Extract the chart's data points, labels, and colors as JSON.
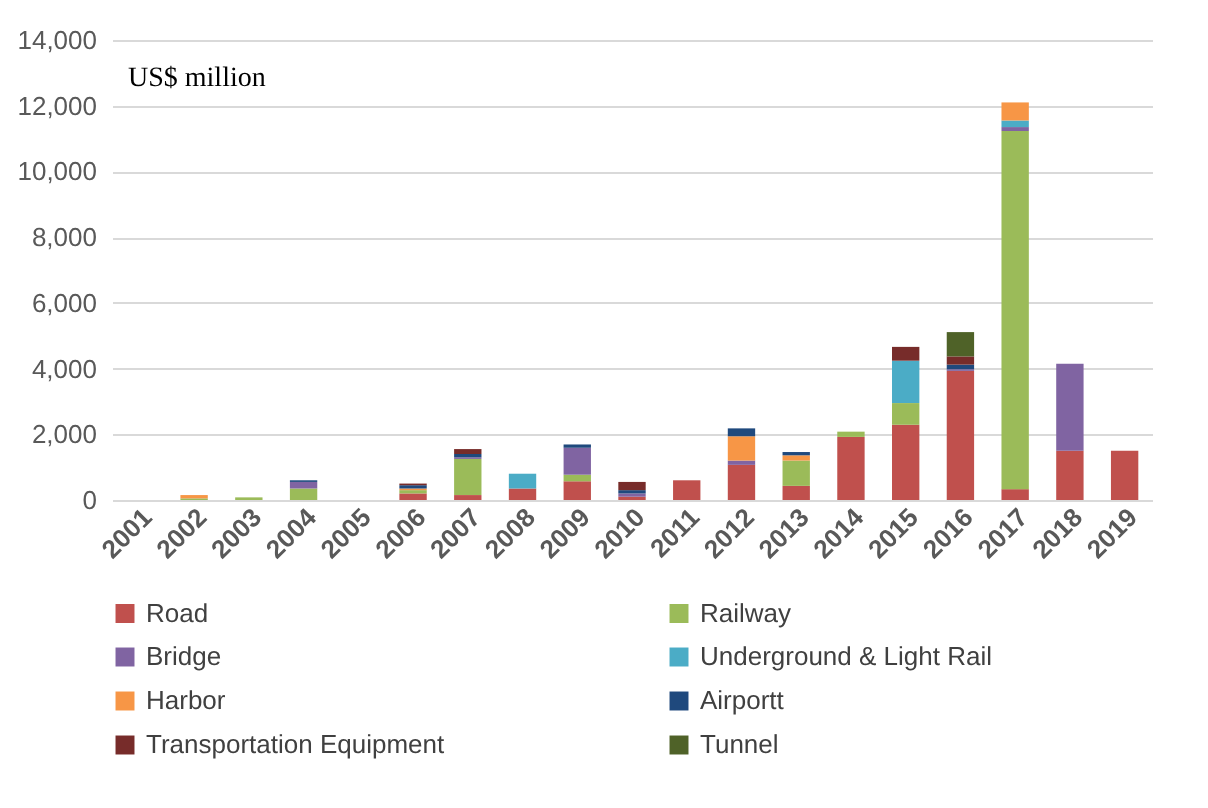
{
  "chart_data": {
    "type": "bar",
    "stacked": true,
    "categories": [
      "2001",
      "2002",
      "2003",
      "2004",
      "2005",
      "2006",
      "2007",
      "2008",
      "2009",
      "2010",
      "2011",
      "2012",
      "2013",
      "2014",
      "2015",
      "2016",
      "2017",
      "2018",
      "2019"
    ],
    "series": [
      {
        "name": "Road",
        "color": "#c0504d",
        "values": [
          null,
          null,
          null,
          null,
          null,
          200,
          150,
          350,
          570,
          100,
          600,
          1070,
          430,
          1920,
          2290,
          3930,
          330,
          1500,
          1500
        ]
      },
      {
        "name": "Railway",
        "color": "#9bbb59",
        "values": [
          null,
          50,
          80,
          350,
          null,
          100,
          1100,
          null,
          200,
          null,
          null,
          null,
          770,
          160,
          660,
          null,
          10900,
          null,
          null
        ]
      },
      {
        "name": "Bridge",
        "color": "#8064a2",
        "values": [
          null,
          null,
          null,
          200,
          null,
          null,
          50,
          null,
          820,
          100,
          null,
          130,
          null,
          null,
          null,
          50,
          120,
          2650,
          null
        ]
      },
      {
        "name": "Underground & Light Rail",
        "color": "#4bacc6",
        "values": [
          null,
          null,
          null,
          null,
          null,
          null,
          null,
          450,
          null,
          null,
          null,
          null,
          null,
          null,
          1290,
          null,
          200,
          null,
          null
        ]
      },
      {
        "name": "Harbor",
        "color": "#f79646",
        "values": [
          null,
          100,
          null,
          null,
          null,
          50,
          null,
          null,
          null,
          null,
          null,
          740,
          160,
          null,
          null,
          null,
          550,
          null,
          null
        ]
      },
      {
        "name": "Airportt",
        "color": "#1f497d",
        "values": [
          null,
          null,
          null,
          50,
          null,
          100,
          100,
          null,
          100,
          100,
          null,
          240,
          100,
          null,
          null,
          140,
          null,
          null,
          null
        ]
      },
      {
        "name": "Transportation Equipment",
        "color": "#772c2a",
        "values": [
          null,
          null,
          null,
          null,
          null,
          50,
          150,
          null,
          null,
          250,
          null,
          null,
          null,
          null,
          420,
          250,
          null,
          null,
          null
        ]
      },
      {
        "name": "Tunnel",
        "color": "#4f6228",
        "values": [
          null,
          null,
          null,
          null,
          null,
          null,
          null,
          null,
          null,
          null,
          null,
          null,
          null,
          null,
          null,
          740,
          null,
          null,
          null
        ]
      }
    ],
    "ylim": [
      0,
      14000
    ],
    "yticks": [
      {
        "value": 0,
        "label": "0"
      },
      {
        "value": 2000,
        "label": "2,000"
      },
      {
        "value": 4000,
        "label": "4,000"
      },
      {
        "value": 6000,
        "label": "6,000"
      },
      {
        "value": 8000,
        "label": "8,000"
      },
      {
        "value": 10000,
        "label": "10,000"
      },
      {
        "value": 12000,
        "label": "12,000"
      },
      {
        "value": 14000,
        "label": "14,000"
      }
    ],
    "grid": "y",
    "legend": "bottom",
    "annotations": [
      "US$ million"
    ]
  }
}
